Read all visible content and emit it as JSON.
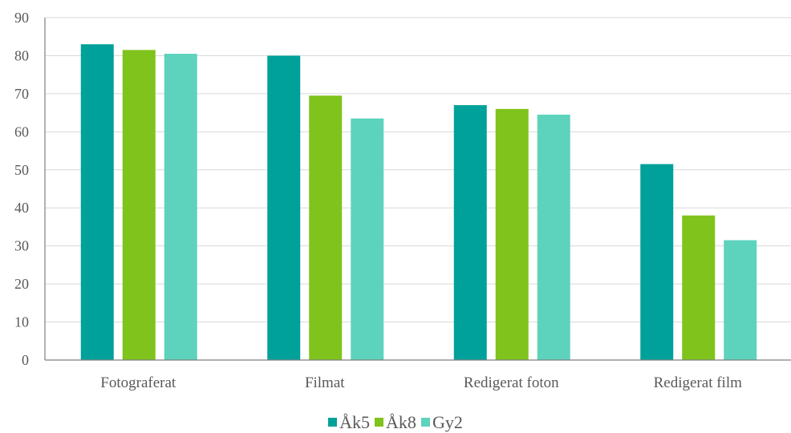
{
  "chart_data": {
    "type": "bar",
    "categories": [
      "Fotograferat",
      "Filmat",
      "Redigerat foton",
      "Redigerat film"
    ],
    "series": [
      {
        "name": "Åk5",
        "color": "#00A19A",
        "values": [
          83,
          80,
          67,
          51.5
        ]
      },
      {
        "name": "Åk8",
        "color": "#7FC31C",
        "values": [
          81.5,
          69.5,
          66,
          38
        ]
      },
      {
        "name": "Gy2",
        "color": "#5DD3BD",
        "values": [
          80.5,
          63.5,
          64.5,
          31.5
        ]
      }
    ],
    "title": "",
    "xlabel": "",
    "ylabel": "",
    "ylim": [
      0,
      90
    ],
    "yticks": [
      "0",
      "10",
      "20",
      "30",
      "40",
      "50",
      "60",
      "70",
      "80",
      "90"
    ],
    "grid": true,
    "legend_position": "bottom"
  }
}
